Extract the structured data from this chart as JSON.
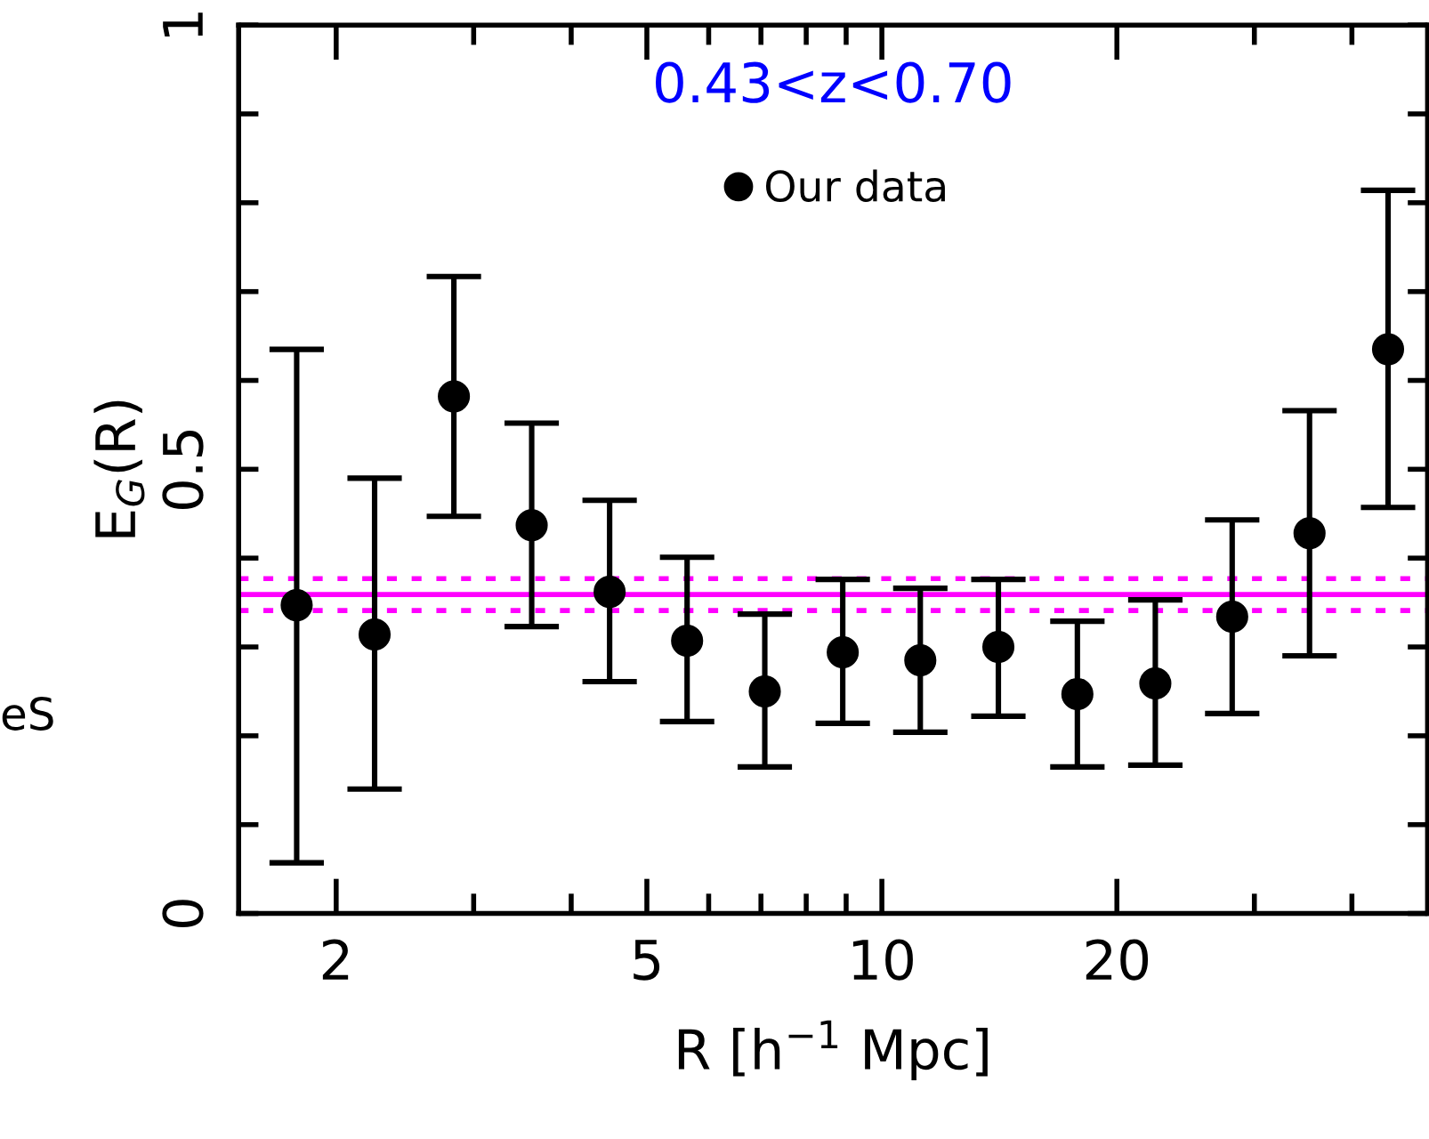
{
  "chart_data": {
    "type": "scatter",
    "title": "0.43<z<0.70",
    "xlabel": "R [h$^{−1}$ Mpc]",
    "ylabel": "E$_{G}$(R)",
    "annotations": [
      "eS"
    ],
    "x": [
      1.78,
      2.24,
      2.83,
      3.56,
      4.48,
      5.63,
      7.08,
      8.91,
      11.2,
      14.1,
      17.8,
      22.4,
      28.1,
      35.3,
      44.5
    ],
    "series": [
      {
        "name": "Our data",
        "color": "#000000",
        "values": [
          0.347,
          0.314,
          0.582,
          0.437,
          0.362,
          0.307,
          0.25,
          0.294,
          0.285,
          0.3,
          0.247,
          0.259,
          0.334,
          0.428,
          0.635
        ],
        "errors": [
          [
            0.057,
            0.635
          ],
          [
            0.14,
            0.49
          ],
          [
            0.447,
            0.717
          ],
          [
            0.323,
            0.552
          ],
          [
            0.261,
            0.465
          ],
          [
            0.216,
            0.401
          ],
          [
            0.165,
            0.337
          ],
          [
            0.214,
            0.376
          ],
          [
            0.204,
            0.366
          ],
          [
            0.222,
            0.376
          ],
          [
            0.165,
            0.329
          ],
          [
            0.167,
            0.353
          ],
          [
            0.225,
            0.443
          ],
          [
            0.29,
            0.566
          ],
          [
            0.457,
            0.814
          ]
        ]
      }
    ],
    "ref_lines": [
      {
        "axis": "y",
        "value": 0.359,
        "color": "#ff00ff",
        "line_style": "solid"
      },
      {
        "axis": "y",
        "value": 0.377,
        "color": "#ff00ff",
        "line_style": "dotted"
      },
      {
        "axis": "y",
        "value": 0.341,
        "color": "#ff00ff",
        "line_style": "dotted"
      }
    ],
    "log": "x",
    "xlim": [
      1.5,
      50
    ],
    "xticks": [
      2,
      {
        "value": 3,
        "label": null
      },
      {
        "value": 4,
        "label": null
      },
      5,
      {
        "value": 6,
        "label": null
      },
      {
        "value": 7,
        "label": null
      },
      {
        "value": 8,
        "label": null
      },
      {
        "value": 9,
        "label": null
      },
      10,
      20,
      {
        "value": 30,
        "label": null
      },
      {
        "value": 40,
        "label": null
      }
    ],
    "ylim": [
      0,
      1
    ],
    "yticks": [
      0,
      {
        "value": 0.1,
        "label": null
      },
      {
        "value": 0.2,
        "label": null
      },
      {
        "value": 0.3,
        "label": null
      },
      {
        "value": 0.4,
        "label": null
      },
      0.5,
      {
        "value": 0.6,
        "label": null
      },
      {
        "value": 0.7,
        "label": null
      },
      {
        "value": 0.8,
        "label": null
      },
      {
        "value": 0.9,
        "label": null
      },
      1
    ],
    "marker": "circle",
    "legend": "top",
    "grid": false
  }
}
